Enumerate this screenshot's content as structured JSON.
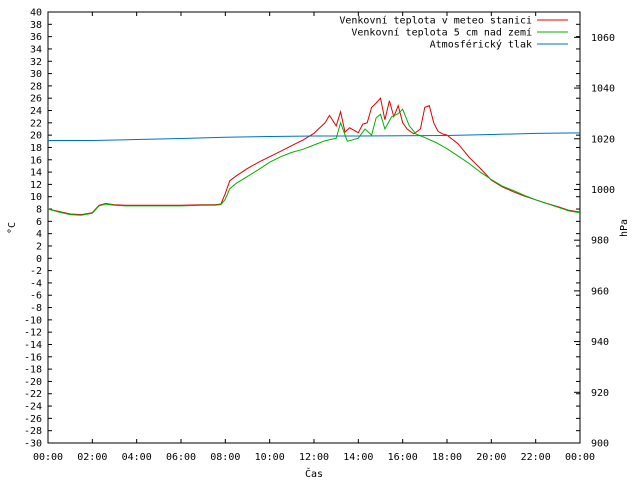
{
  "chart_data": {
    "type": "line",
    "xlabel": "Čas",
    "ylabel": "°C",
    "y2label": "hPa",
    "xlim": [
      0,
      24
    ],
    "ylim": [
      -30,
      40
    ],
    "y2lim": [
      900,
      1070
    ],
    "grid": false,
    "legend_position": "top-right",
    "x_ticks": [
      "00:00",
      "02:00",
      "04:00",
      "06:00",
      "08:00",
      "10:00",
      "12:00",
      "14:00",
      "16:00",
      "18:00",
      "20:00",
      "22:00",
      "00:00"
    ],
    "y_ticks": [
      40,
      38,
      36,
      34,
      32,
      30,
      28,
      26,
      24,
      22,
      20,
      18,
      16,
      14,
      12,
      10,
      8,
      6,
      4,
      2,
      0,
      -2,
      -4,
      -6,
      -8,
      -10,
      -12,
      -14,
      -16,
      -18,
      -20,
      -22,
      -24,
      -26,
      -28,
      -30
    ],
    "y2_ticks": [
      1060,
      1040,
      1020,
      1000,
      980,
      960,
      940,
      920,
      900
    ],
    "series": [
      {
        "name": "Venkovní teplota v meteo stanici",
        "axis": "left",
        "color": "#e00000",
        "x": [
          0,
          0.5,
          1,
          1.5,
          2,
          2.3,
          2.6,
          3,
          3.5,
          4,
          5,
          6,
          7,
          7.5,
          7.8,
          8,
          8.2,
          8.5,
          9,
          9.5,
          10,
          10.5,
          11,
          11.5,
          12,
          12.2,
          12.5,
          12.7,
          13,
          13.2,
          13.4,
          13.6,
          14,
          14.2,
          14.4,
          14.6,
          14.8,
          15,
          15.2,
          15.4,
          15.6,
          15.8,
          16,
          16.2,
          16.5,
          16.8,
          17,
          17.2,
          17.4,
          17.6,
          17.8,
          18,
          18.5,
          19,
          19.5,
          20,
          20.5,
          21,
          21.5,
          22,
          22.5,
          23,
          23.5,
          24
        ],
        "values": [
          8,
          7.6,
          7.2,
          7.1,
          7.4,
          8.6,
          8.9,
          8.7,
          8.6,
          8.6,
          8.6,
          8.6,
          8.7,
          8.7,
          8.8,
          10.5,
          12.6,
          13.4,
          14.6,
          15.6,
          16.5,
          17.4,
          18.3,
          19.2,
          20.3,
          21,
          22,
          23.2,
          21.5,
          23.8,
          20.5,
          21.2,
          20.4,
          21.8,
          22,
          24.5,
          25.2,
          26,
          22.5,
          25.6,
          23,
          24.8,
          22,
          21,
          20.2,
          21,
          24.5,
          24.8,
          22,
          20.6,
          20.2,
          20,
          18.6,
          16.4,
          14.6,
          12.7,
          11.6,
          10.8,
          10.1,
          9.5,
          8.9,
          8.4,
          7.8,
          7.5
        ]
      },
      {
        "name": "Venkovní teplota 5 cm nad zemí",
        "axis": "left",
        "color": "#00b000",
        "x": [
          0,
          0.5,
          1,
          1.5,
          2,
          2.3,
          2.6,
          3,
          3.5,
          4,
          5,
          6,
          7,
          7.5,
          7.8,
          8,
          8.2,
          8.5,
          9,
          9.5,
          10,
          10.5,
          11,
          11.5,
          12,
          12.5,
          13,
          13.2,
          13.5,
          14,
          14.3,
          14.6,
          14.8,
          15,
          15.2,
          15.5,
          15.8,
          16,
          16.3,
          16.6,
          17,
          17.5,
          18,
          18.5,
          19,
          19.5,
          20,
          20.5,
          21,
          21.5,
          22,
          22.5,
          23,
          23.5,
          24
        ],
        "values": [
          8,
          7.5,
          7.1,
          7,
          7.3,
          8.5,
          8.8,
          8.6,
          8.5,
          8.5,
          8.5,
          8.5,
          8.6,
          8.6,
          8.7,
          9.6,
          11.3,
          12.2,
          13.3,
          14.4,
          15.6,
          16.5,
          17.2,
          17.7,
          18.4,
          19.1,
          19.5,
          22,
          19,
          19.5,
          21,
          20,
          22.8,
          23.4,
          21,
          23,
          23.5,
          24.2,
          21.5,
          20.2,
          19.6,
          18.8,
          17.8,
          16.6,
          15.4,
          14,
          12.8,
          11.7,
          11,
          10.2,
          9.5,
          8.9,
          8.3,
          7.7,
          7.4
        ]
      },
      {
        "name": "Atmosférický tlak",
        "axis": "right",
        "color": "#0070c0",
        "x": [
          0,
          2,
          4,
          6,
          8,
          10,
          12,
          14,
          16,
          18,
          20,
          22,
          24
        ],
        "values": [
          1019.3,
          1019.3,
          1019.7,
          1020.1,
          1020.6,
          1020.9,
          1021.1,
          1021.1,
          1021.2,
          1021.3,
          1021.7,
          1022.1,
          1022.3
        ]
      }
    ]
  }
}
